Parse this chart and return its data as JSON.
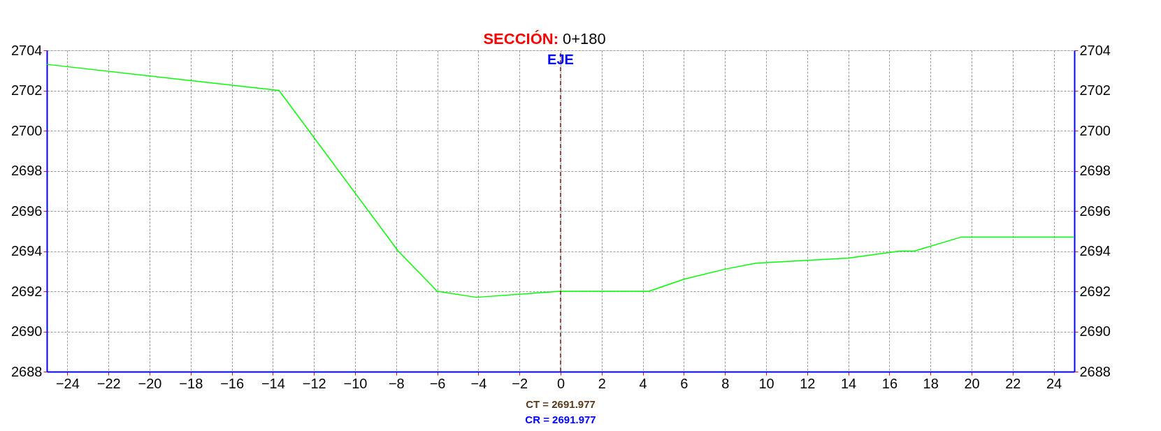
{
  "chart_data": {
    "type": "line",
    "title": "SECCIÓN:",
    "subtitle": "0+180",
    "x": [
      -25,
      -13.7,
      -7.9,
      -6,
      -4.1,
      0,
      4.3,
      6,
      8,
      9.5,
      14,
      16.5,
      17.2,
      19.5,
      25
    ],
    "series": [
      {
        "color": "#00ff00",
        "values": [
          2703.3,
          2702.0,
          2694.0,
          2692.0,
          2691.7,
          2692.0,
          2692.0,
          2692.6,
          2693.1,
          2693.4,
          2693.65,
          2694.0,
          2694.0,
          2694.7,
          2694.7
        ]
      }
    ],
    "xlim": [
      -25,
      25
    ],
    "xticks": [
      -24,
      -22,
      -20,
      -18,
      -16,
      -14,
      -12,
      -10,
      -8,
      -6,
      -4,
      -2,
      0,
      2,
      4,
      6,
      8,
      10,
      12,
      14,
      16,
      18,
      20,
      22,
      24
    ],
    "ylim": [
      2688,
      2704
    ],
    "yticks": [
      2688,
      2690,
      2692,
      2694,
      2696,
      2698,
      2700,
      2702,
      2704
    ],
    "y2lim": [
      2688,
      2704
    ],
    "y2ticks": [
      2688,
      2690,
      2692,
      2694,
      2696,
      2698,
      2700,
      2702,
      2704
    ],
    "ref_lines": [
      {
        "axis": "x",
        "value": 0,
        "label": "EJE",
        "color": "#7f1f1f",
        "line_style": "dashed"
      }
    ],
    "annotations": [
      "CT = 2691.977",
      "CR = 2691.977"
    ],
    "grid": true,
    "legend": false,
    "marker": "none",
    "line_style": "solid"
  }
}
